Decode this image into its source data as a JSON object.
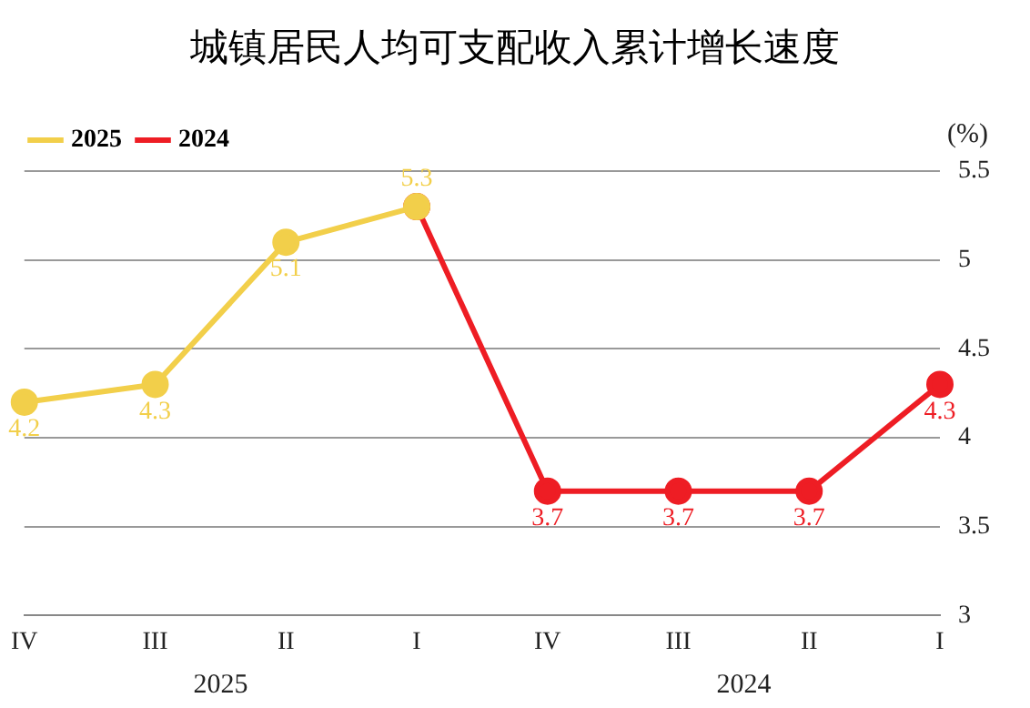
{
  "chart_data": {
    "type": "line",
    "title": "城镇居民人均可支配收入累计增长速度",
    "ylabel": "(%)",
    "categories": [
      "IV",
      "III",
      "II",
      "I",
      "IV",
      "III",
      "II",
      "I"
    ],
    "series": [
      {
        "name": "2025",
        "color": "#f2cf4a",
        "values": [
          4.2,
          4.3,
          5.1,
          5.3,
          null,
          null,
          null,
          null
        ],
        "value_labels": [
          "4.2",
          "4.3",
          "5.1",
          "5.3",
          null,
          null,
          null,
          null
        ]
      },
      {
        "name": "2024",
        "color": "#ee1d24",
        "values": [
          null,
          null,
          null,
          5.3,
          3.7,
          3.7,
          3.7,
          4.3
        ],
        "value_labels": [
          null,
          null,
          null,
          null,
          "3.7",
          "3.7",
          "3.7",
          "4.3"
        ]
      }
    ],
    "annotations": [
      "2025",
      "2024"
    ],
    "ylim": [
      3,
      5.5
    ],
    "yticks": [
      3,
      3.5,
      4,
      4.5,
      5,
      5.5
    ],
    "grid": "y",
    "legend": "top left",
    "marker": "circle",
    "line_style": "solid"
  }
}
